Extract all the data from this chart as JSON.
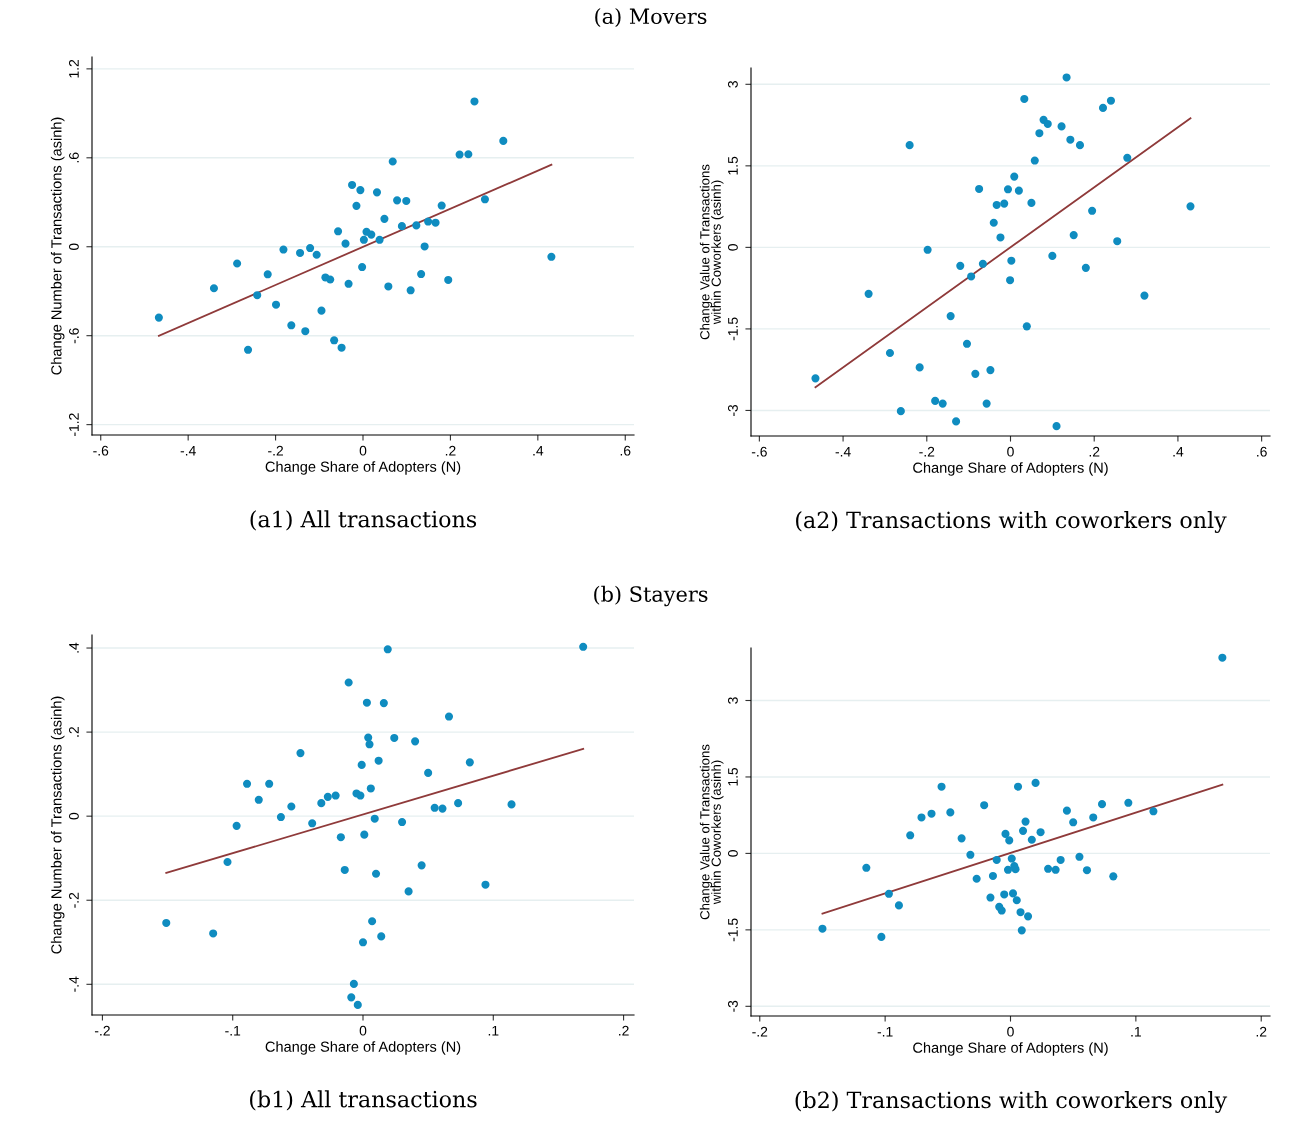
{
  "chart_data": [
    {
      "type": "scatter",
      "title": "(a1) All transactions",
      "xlabel": "Change Share of Adopters (N)",
      "ylabel": "Change Number of Transactions (asinh)",
      "annotations": [
        "(a) Movers"
      ],
      "xlim": [
        -0.62,
        0.62
      ],
      "ylim": [
        -1.27,
        1.28
      ],
      "grid": "y",
      "xticks": [
        {
          "value": -0.6,
          "label": "-.6"
        },
        {
          "value": -0.4,
          "label": "-.4"
        },
        {
          "value": -0.2,
          "label": "-.2"
        },
        0,
        {
          "value": 0.2,
          "label": ".2"
        },
        {
          "value": 0.4,
          "label": ".4"
        },
        {
          "value": 0.6,
          "label": ".6"
        }
      ],
      "yticks": [
        {
          "value": -1.2,
          "label": "-1.2"
        },
        {
          "value": -0.6,
          "label": "-.6"
        },
        0,
        {
          "value": 0.6,
          "label": ".6"
        },
        {
          "value": 1.2,
          "label": "1.2"
        }
      ],
      "series": [
        {
          "type": "scatter",
          "marker": "circle",
          "color": "#0f8cc0",
          "x": [
            -0.467,
            -0.341,
            -0.288,
            -0.263,
            -0.242,
            -0.218,
            -0.199,
            -0.182,
            -0.164,
            -0.144,
            -0.132,
            -0.121,
            -0.106,
            -0.095,
            -0.086,
            -0.075,
            -0.066,
            -0.057,
            -0.049,
            -0.04,
            -0.033,
            -0.025,
            -0.015,
            -0.006,
            -0.002,
            0.002,
            0.008,
            0.019,
            0.032,
            0.038,
            0.049,
            0.058,
            0.068,
            0.078,
            0.089,
            0.099,
            0.109,
            0.122,
            0.133,
            0.141,
            0.149,
            0.166,
            0.18,
            0.195,
            0.221,
            0.241,
            0.255,
            0.279,
            0.321,
            0.431
          ],
          "values": [
            -0.478,
            -0.28,
            -0.113,
            -0.695,
            -0.327,
            -0.186,
            -0.391,
            -0.019,
            -0.53,
            -0.042,
            -0.57,
            -0.009,
            -0.054,
            -0.431,
            -0.207,
            -0.221,
            -0.631,
            0.104,
            -0.681,
            0.021,
            -0.25,
            0.417,
            0.276,
            0.382,
            -0.137,
            0.047,
            0.101,
            0.082,
            0.367,
            0.047,
            0.188,
            -0.268,
            0.575,
            0.313,
            0.139,
            0.309,
            -0.294,
            0.144,
            -0.184,
            0.002,
            0.17,
            0.162,
            0.278,
            -0.224,
            0.622,
            0.624,
            0.98,
            0.32,
            0.714,
            -0.068
          ]
        },
        {
          "type": "line",
          "color": "#8f3a3a",
          "x": [
            -0.467,
            0.431
          ],
          "values": [
            -0.601,
            0.553
          ]
        }
      ]
    },
    {
      "type": "scatter",
      "title": "(a2) Transactions with coworkers only",
      "xlabel": "Change Share of Adopters (N)",
      "ylabel": "Change Value of Transactions\nwithin Coworkers (asinh)",
      "xlim": [
        -0.62,
        0.62
      ],
      "ylim": [
        -3.47,
        3.3
      ],
      "grid": "y",
      "xticks": [
        {
          "value": -0.6,
          "label": "-.6"
        },
        {
          "value": -0.4,
          "label": "-.4"
        },
        {
          "value": -0.2,
          "label": "-.2"
        },
        0,
        {
          "value": 0.2,
          "label": ".2"
        },
        {
          "value": 0.4,
          "label": ".4"
        },
        {
          "value": 0.6,
          "label": ".6"
        }
      ],
      "yticks": [
        -3,
        -1.5,
        0,
        1.5,
        3
      ],
      "series": [
        {
          "type": "scatter",
          "marker": "circle",
          "color": "#0f8cc0",
          "x": [
            -0.466,
            -0.339,
            -0.288,
            -0.262,
            -0.241,
            -0.217,
            -0.198,
            -0.18,
            -0.162,
            -0.143,
            -0.13,
            -0.12,
            -0.104,
            -0.094,
            -0.084,
            -0.075,
            -0.066,
            -0.057,
            -0.048,
            -0.04,
            -0.033,
            -0.024,
            -0.015,
            -0.006,
            -0.001,
            0.002,
            0.009,
            0.02,
            0.033,
            0.039,
            0.05,
            0.058,
            0.069,
            0.079,
            0.089,
            0.1,
            0.11,
            0.122,
            0.134,
            0.143,
            0.151,
            0.166,
            0.18,
            0.195,
            0.221,
            0.24,
            0.255,
            0.279,
            0.32,
            0.43
          ],
          "values": [
            -2.409,
            -0.855,
            -1.943,
            -3.013,
            1.881,
            -2.208,
            -0.044,
            -2.824,
            -2.874,
            -1.264,
            -3.201,
            -0.34,
            -1.774,
            -0.535,
            -2.327,
            1.075,
            -0.302,
            -2.874,
            -2.258,
            0.453,
            0.78,
            0.182,
            0.805,
            1.069,
            -0.604,
            -0.245,
            1.302,
            1.044,
            2.73,
            -1.453,
            0.818,
            1.597,
            2.101,
            2.346,
            2.27,
            -0.157,
            -3.289,
            2.226,
            3.126,
            1.981,
            0.226,
            1.881,
            -0.377,
            0.673,
            2.566,
            2.698,
            0.113,
            1.648,
            -0.887,
            0.755
          ]
        },
        {
          "type": "line",
          "color": "#8f3a3a",
          "x": [
            -0.466,
            0.43
          ],
          "values": [
            -2.572,
            2.377
          ]
        }
      ]
    },
    {
      "type": "scatter",
      "title": "(b1) All transactions",
      "xlabel": "Change Share of Adopters (N)",
      "ylabel": "Change Number of Transactions (asinh)",
      "annotations": [
        "(b) Stayers"
      ],
      "xlim": [
        -0.208,
        0.208
      ],
      "ylim": [
        -0.473,
        0.431
      ],
      "grid": "y",
      "xticks": [
        {
          "value": -0.2,
          "label": "-.2"
        },
        {
          "value": -0.1,
          "label": "-.1"
        },
        0,
        {
          "value": 0.1,
          "label": ".1"
        },
        {
          "value": 0.2,
          "label": ".2"
        }
      ],
      "yticks": [
        {
          "value": -0.4,
          "label": "-.4"
        },
        {
          "value": -0.2,
          "label": "-.2"
        },
        0,
        {
          "value": 0.2,
          "label": ".2"
        },
        {
          "value": 0.4,
          "label": ".4"
        }
      ],
      "series": [
        {
          "type": "scatter",
          "marker": "circle",
          "color": "#0f8cc0",
          "x": [
            -0.151,
            -0.115,
            -0.104,
            -0.097,
            -0.089,
            -0.08,
            -0.072,
            -0.063,
            -0.055,
            -0.048,
            -0.039,
            -0.032,
            -0.027,
            -0.021,
            -0.017,
            -0.014,
            -0.011,
            -0.009,
            -0.007,
            -0.005,
            -0.004,
            -0.002,
            -0.001,
            0.0,
            0.001,
            0.003,
            0.004,
            0.005,
            0.006,
            0.007,
            0.009,
            0.01,
            0.012,
            0.014,
            0.016,
            0.019,
            0.024,
            0.03,
            0.035,
            0.04,
            0.045,
            0.05,
            0.055,
            0.061,
            0.066,
            0.073,
            0.082,
            0.094,
            0.114,
            0.169
          ],
          "values": [
            -0.254,
            -0.279,
            -0.109,
            -0.023,
            0.077,
            0.039,
            0.077,
            -0.002,
            0.023,
            0.15,
            -0.017,
            0.031,
            0.046,
            0.049,
            -0.05,
            -0.128,
            0.318,
            -0.431,
            -0.399,
            0.054,
            -0.449,
            0.049,
            0.122,
            -0.3,
            -0.044,
            0.27,
            0.187,
            0.171,
            0.066,
            -0.25,
            -0.006,
            -0.137,
            0.132,
            -0.286,
            0.269,
            0.397,
            0.186,
            -0.014,
            -0.179,
            0.178,
            -0.117,
            0.103,
            0.02,
            0.018,
            0.237,
            0.031,
            0.128,
            -0.163,
            0.028,
            0.403
          ]
        },
        {
          "type": "line",
          "color": "#8f3a3a",
          "x": [
            -0.151,
            0.169
          ],
          "values": [
            -0.135,
            0.16
          ]
        }
      ]
    },
    {
      "type": "scatter",
      "title": "(b2) Transactions with coworkers only",
      "xlabel": "Change Share of Adopters (N)",
      "ylabel": "Change Value of Transactions\nwithin Coworkers (asinh)",
      "xlim": [
        -0.207,
        0.207
      ],
      "ylim": [
        -3.19,
        4.03
      ],
      "grid": "y",
      "xticks": [
        {
          "value": -0.2,
          "label": "-.2"
        },
        {
          "value": -0.1,
          "label": "-.1"
        },
        0,
        {
          "value": 0.1,
          "label": ".1"
        },
        {
          "value": 0.2,
          "label": ".2"
        }
      ],
      "yticks": [
        -3,
        -1.5,
        0,
        1.5,
        3
      ],
      "series": [
        {
          "type": "scatter",
          "marker": "circle",
          "color": "#0f8cc0",
          "x": [
            -0.15,
            -0.115,
            -0.103,
            -0.097,
            -0.089,
            -0.08,
            -0.071,
            -0.063,
            -0.055,
            -0.048,
            -0.039,
            -0.032,
            -0.027,
            -0.021,
            -0.016,
            -0.014,
            -0.011,
            -0.009,
            -0.007,
            -0.005,
            -0.004,
            -0.002,
            -0.001,
            0.001,
            0.002,
            0.003,
            0.004,
            0.005,
            0.006,
            0.008,
            0.009,
            0.01,
            0.012,
            0.014,
            0.017,
            0.02,
            0.024,
            0.03,
            0.036,
            0.04,
            0.045,
            0.05,
            0.055,
            0.061,
            0.066,
            0.073,
            0.082,
            0.094,
            0.114,
            0.169
          ],
          "values": [
            -1.477,
            -0.282,
            -1.638,
            -0.792,
            -1.02,
            0.356,
            0.705,
            0.779,
            1.309,
            0.805,
            0.295,
            -0.027,
            -0.497,
            0.946,
            -0.866,
            -0.443,
            -0.128,
            -1.047,
            -1.121,
            -0.805,
            0.383,
            -0.322,
            0.255,
            -0.101,
            -0.785,
            -0.248,
            -0.309,
            -0.919,
            1.309,
            -1.154,
            -1.51,
            0.443,
            0.624,
            -1.235,
            0.268,
            1.383,
            0.416,
            -0.302,
            -0.322,
            -0.128,
            0.839,
            0.611,
            -0.067,
            -0.329,
            0.705,
            0.966,
            -0.45,
            0.993,
            0.826,
            3.839
          ]
        },
        {
          "type": "line",
          "color": "#8f3a3a",
          "x": [
            -0.15,
            0.169
          ],
          "values": [
            -1.181,
            1.349
          ]
        }
      ]
    }
  ]
}
